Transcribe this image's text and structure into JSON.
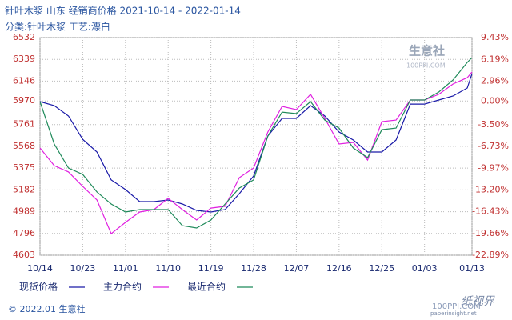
{
  "chart_data": {
    "type": "line",
    "title": "针叶木浆 山东 经销商价格 2021-10-14 - 2022-01-14",
    "subtitle": "分类:针叶木浆 工艺:漂白",
    "x": [
      0,
      3,
      6,
      9,
      12,
      15,
      18,
      21,
      24,
      27,
      30,
      33,
      36,
      39,
      42,
      45,
      48,
      51,
      54,
      57,
      60,
      63,
      66,
      69,
      72,
      75,
      78,
      81,
      84,
      87,
      90,
      91
    ],
    "xlim": [
      0,
      91
    ],
    "xticks": [
      {
        "value": 0,
        "label": "10/14"
      },
      {
        "value": 9,
        "label": "10/23"
      },
      {
        "value": 18,
        "label": "11/01"
      },
      {
        "value": 27,
        "label": "11/10"
      },
      {
        "value": 36,
        "label": "11/19"
      },
      {
        "value": 45,
        "label": "11/28"
      },
      {
        "value": 54,
        "label": "12/07"
      },
      {
        "value": 63,
        "label": "12/16"
      },
      {
        "value": 72,
        "label": "12/25"
      },
      {
        "value": 81,
        "label": "01/03"
      },
      {
        "value": 91,
        "label": "01/13"
      }
    ],
    "ylim": [
      4603,
      6532
    ],
    "yticks": [
      6532,
      6339,
      6146,
      5970,
      5761,
      5568,
      5375,
      5182,
      4989,
      4796,
      4603
    ],
    "y2lim": [
      -22.89,
      9.43
    ],
    "y2ticks": [
      {
        "value": 9.43,
        "label": "9.43%"
      },
      {
        "value": 6.19,
        "label": "6.19%"
      },
      {
        "value": 2.96,
        "label": "2.96%"
      },
      {
        "value": 0,
        "label": "0.00%"
      },
      {
        "value": -3.5,
        "label": "-3.50%"
      },
      {
        "value": -6.73,
        "label": "-6.73%"
      },
      {
        "value": -9.97,
        "label": "-9.97%"
      },
      {
        "value": -13.2,
        "label": "-13.20%"
      },
      {
        "value": -16.43,
        "label": "-16.43%"
      },
      {
        "value": -19.66,
        "label": "-19.66%"
      },
      {
        "value": -22.89,
        "label": "-22.89%"
      }
    ],
    "grid": true,
    "series": [
      {
        "name": "现货价格",
        "color": "#1a1aa8",
        "values": [
          5965,
          5929,
          5837,
          5630,
          5518,
          5270,
          5185,
          5078,
          5078,
          5092,
          5057,
          5000,
          4986,
          5007,
          5149,
          5305,
          5660,
          5816,
          5816,
          5929,
          5837,
          5695,
          5624,
          5518,
          5518,
          5624,
          5943,
          5943,
          5979,
          6014,
          6085,
          6213
        ]
      },
      {
        "name": "主力合约",
        "color": "#e020e0",
        "values": [
          5553,
          5397,
          5341,
          5213,
          5092,
          4794,
          4894,
          4986,
          5007,
          5107,
          5007,
          4915,
          5021,
          5036,
          5291,
          5376,
          5695,
          5922,
          5894,
          6029,
          5816,
          5589,
          5603,
          5447,
          5787,
          5801,
          5979,
          5979,
          6029,
          6121,
          6177,
          6227
        ]
      },
      {
        "name": "最近合约",
        "color": "#1f8a5a",
        "values": [
          5965,
          5589,
          5376,
          5319,
          5163,
          5057,
          4986,
          5007,
          5007,
          5007,
          4865,
          4844,
          4915,
          5057,
          5199,
          5270,
          5660,
          5872,
          5858,
          5965,
          5801,
          5730,
          5553,
          5468,
          5716,
          5730,
          5979,
          5979,
          6050,
          6156,
          6312,
          6355
        ]
      }
    ]
  },
  "footer": "© 2022.01 生意社",
  "watermarks": [
    "生意社",
    "100PPI.COM",
    "纸视界",
    "paperinsight.net",
    "100PPI.COM"
  ]
}
